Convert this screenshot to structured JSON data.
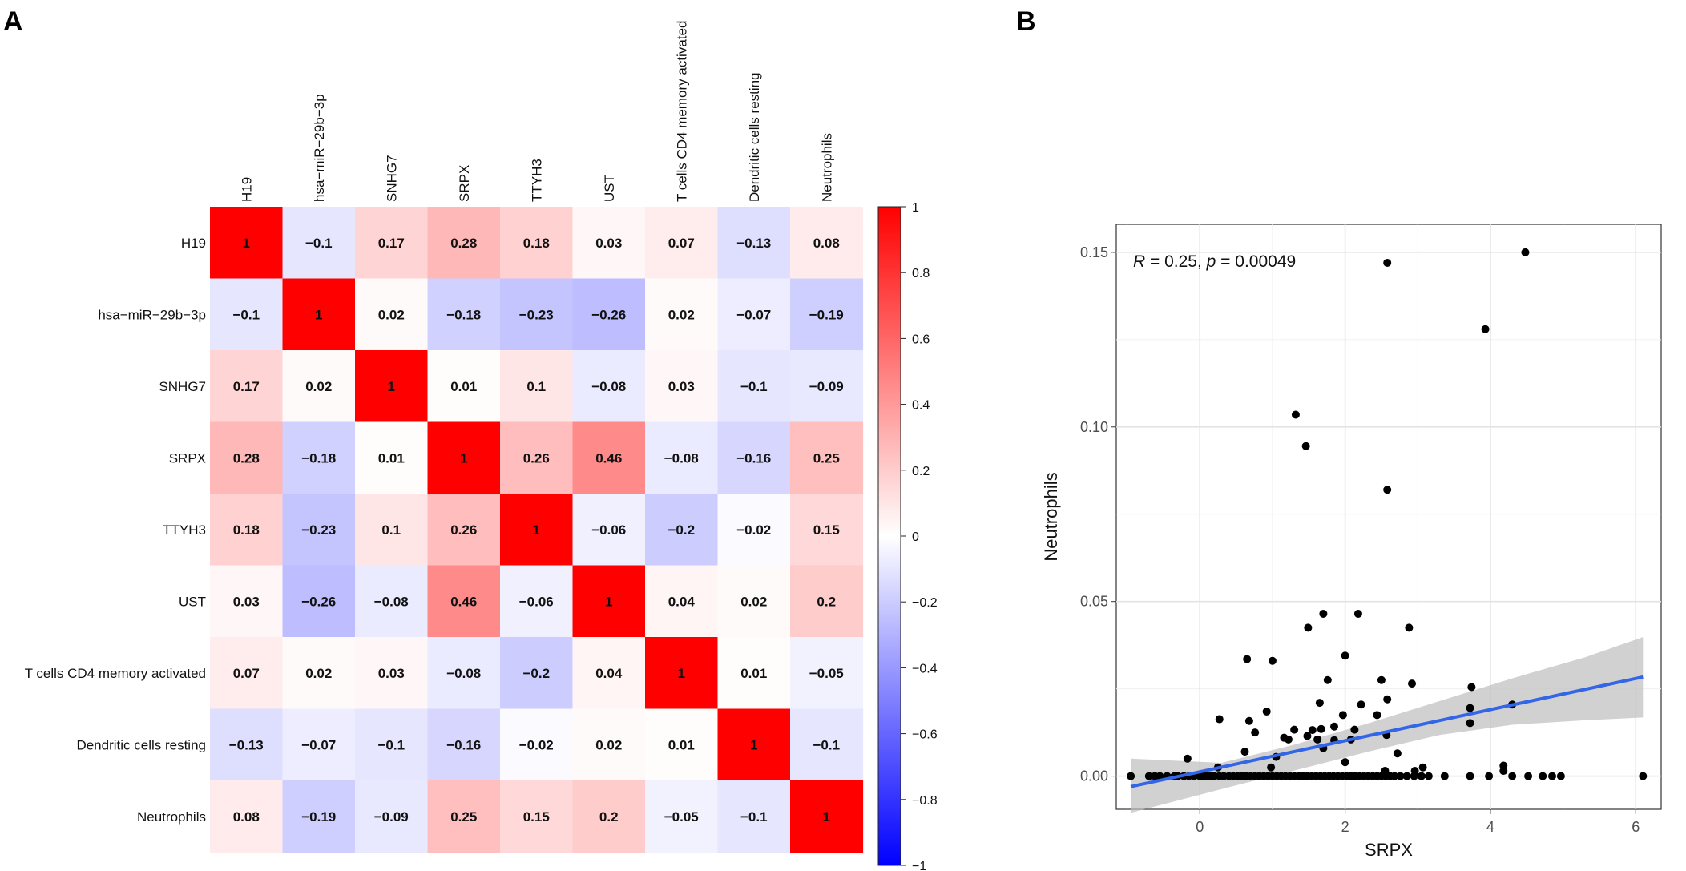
{
  "panels": {
    "a": "A",
    "b": "B"
  },
  "chart_data": [
    {
      "type": "heatmap",
      "title": "",
      "rows": [
        "H19",
        "hsa−miR−29b−3p",
        "SNHG7",
        "SRPX",
        "TTYH3",
        "UST",
        "T cells CD4 memory activated",
        "Dendritic cells resting",
        "Neutrophils"
      ],
      "columns": [
        "H19",
        "hsa−miR−29b−3p",
        "SNHG7",
        "SRPX",
        "TTYH3",
        "UST",
        "T cells CD4 memory activated",
        "Dendritic cells resting",
        "Neutrophils"
      ],
      "values": [
        [
          1,
          -0.1,
          0.17,
          0.28,
          0.18,
          0.03,
          0.07,
          -0.13,
          0.08
        ],
        [
          -0.1,
          1,
          0.02,
          -0.18,
          -0.23,
          -0.26,
          0.02,
          -0.07,
          -0.19
        ],
        [
          0.17,
          0.02,
          1,
          0.01,
          0.1,
          -0.08,
          0.03,
          -0.1,
          -0.09
        ],
        [
          0.28,
          -0.18,
          0.01,
          1,
          0.26,
          0.46,
          -0.08,
          -0.16,
          0.25
        ],
        [
          0.18,
          -0.23,
          0.1,
          0.26,
          1,
          -0.06,
          -0.2,
          -0.02,
          0.15
        ],
        [
          0.03,
          -0.26,
          -0.08,
          0.46,
          -0.06,
          1,
          0.04,
          0.02,
          0.2
        ],
        [
          0.07,
          0.02,
          0.03,
          -0.08,
          -0.2,
          0.04,
          1,
          0.01,
          -0.05
        ],
        [
          -0.13,
          -0.07,
          -0.1,
          -0.16,
          -0.02,
          0.02,
          0.01,
          1,
          -0.1
        ],
        [
          0.08,
          -0.19,
          -0.09,
          0.25,
          0.15,
          0.2,
          -0.05,
          -0.1,
          1
        ]
      ],
      "colorbar": {
        "range": [
          -1,
          1
        ],
        "ticks": [
          1,
          0.8,
          0.6,
          0.4,
          0.2,
          0,
          -0.2,
          -0.4,
          -0.6,
          -0.8,
          -1
        ],
        "tick_labels": [
          "1",
          "0.8",
          "0.6",
          "0.4",
          "0.2",
          "0",
          "−0.2",
          "−0.4",
          "−0.6",
          "−0.8",
          "−1"
        ],
        "colors": {
          "low": "#0000ff",
          "mid": "#ffffff",
          "high": "#ff0000"
        }
      }
    },
    {
      "type": "scatter",
      "title": "",
      "xlabel": "SRPX",
      "ylabel": "Neutrophils",
      "xlim": [
        -1.15,
        6.35
      ],
      "ylim": [
        -0.0095,
        0.158
      ],
      "x_ticks": [
        0,
        2,
        4,
        6
      ],
      "x_tick_labels": [
        "0",
        "2",
        "4",
        "6"
      ],
      "y_ticks": [
        0,
        0.05,
        0.1,
        0.15
      ],
      "y_tick_labels": [
        "0.00",
        "0.05",
        "0.10",
        "0.15"
      ],
      "grid": true,
      "annotation": {
        "r_symbol": "R",
        "r_text": " = 0.25, ",
        "p_symbol": "p",
        "p_text": " = 0.00049"
      },
      "regression": {
        "x": [
          -0.95,
          6.1
        ],
        "y": [
          -0.003,
          0.0284
        ],
        "color": "#3366e6"
      },
      "confidence_band": {
        "x": [
          -0.95,
          0.3,
          1.3,
          2.3,
          3.3,
          4.3,
          5.3,
          6.1
        ],
        "upper": [
          0.005,
          0.0038,
          0.009,
          0.015,
          0.0215,
          0.028,
          0.034,
          0.0398
        ],
        "lower": [
          -0.0105,
          -0.0037,
          0.0016,
          0.0069,
          0.0118,
          0.0147,
          0.016,
          0.0168
        ],
        "color": "#bdbdbd"
      },
      "points": [
        [
          2.58,
          0.147
        ],
        [
          4.48,
          0.15
        ],
        [
          3.93,
          0.128
        ],
        [
          1.32,
          0.1035
        ],
        [
          1.46,
          0.0945
        ],
        [
          2.58,
          0.082
        ],
        [
          1.7,
          0.0465
        ],
        [
          2.18,
          0.0465
        ],
        [
          1.49,
          0.0425
        ],
        [
          2.88,
          0.0425
        ],
        [
          2.0,
          0.0345
        ],
        [
          0.65,
          0.0335
        ],
        [
          1.0,
          0.033
        ],
        [
          1.76,
          0.0275
        ],
        [
          2.5,
          0.0275
        ],
        [
          2.92,
          0.0265
        ],
        [
          3.74,
          0.0255
        ],
        [
          2.58,
          0.022
        ],
        [
          1.65,
          0.021
        ],
        [
          4.3,
          0.0205
        ],
        [
          2.22,
          0.0205
        ],
        [
          3.72,
          0.0195
        ],
        [
          0.92,
          0.0185
        ],
        [
          2.44,
          0.0175
        ],
        [
          1.97,
          0.0175
        ],
        [
          0.27,
          0.0163
        ],
        [
          0.68,
          0.0158
        ],
        [
          3.72,
          0.0152
        ],
        [
          1.85,
          0.0142
        ],
        [
          1.3,
          0.0133
        ],
        [
          1.67,
          0.0135
        ],
        [
          2.13,
          0.0133
        ],
        [
          1.55,
          0.0132
        ],
        [
          0.76,
          0.0125
        ],
        [
          1.16,
          0.011
        ],
        [
          1.22,
          0.0105
        ],
        [
          1.85,
          0.0103
        ],
        [
          1.62,
          0.0105
        ],
        [
          2.08,
          0.0105
        ],
        [
          2.57,
          0.0118
        ],
        [
          1.48,
          0.0115
        ],
        [
          1.7,
          0.008
        ],
        [
          0.62,
          0.007
        ],
        [
          1.05,
          0.0055
        ],
        [
          0.98,
          0.0025
        ],
        [
          2.72,
          0.0065
        ],
        [
          3.07,
          0.0025
        ],
        [
          2.0,
          0.004
        ],
        [
          2.55,
          0.0015
        ],
        [
          2.96,
          0.0015
        ],
        [
          4.18,
          0.003
        ],
        [
          4.18,
          0.0015
        ],
        [
          -0.17,
          0.005
        ],
        [
          0.25,
          0.0025
        ],
        [
          -0.95,
          0.0
        ],
        [
          -0.7,
          0.0
        ],
        [
          -0.62,
          0.0
        ],
        [
          -0.55,
          0.0
        ],
        [
          -0.45,
          0.0
        ],
        [
          -0.35,
          0.0
        ],
        [
          -0.3,
          0.0
        ],
        [
          -0.22,
          0.0
        ],
        [
          -0.15,
          0.0
        ],
        [
          -0.08,
          0.0
        ],
        [
          0.0,
          0.0
        ],
        [
          0.05,
          0.0
        ],
        [
          0.1,
          0.0
        ],
        [
          0.15,
          0.0
        ],
        [
          0.2,
          0.0
        ],
        [
          0.27,
          0.0
        ],
        [
          0.33,
          0.0
        ],
        [
          0.4,
          0.0
        ],
        [
          0.46,
          0.0
        ],
        [
          0.52,
          0.0
        ],
        [
          0.58,
          0.0
        ],
        [
          0.64,
          0.0
        ],
        [
          0.7,
          0.0
        ],
        [
          0.76,
          0.0
        ],
        [
          0.82,
          0.0
        ],
        [
          0.88,
          0.0
        ],
        [
          0.94,
          0.0
        ],
        [
          1.0,
          0.0
        ],
        [
          1.06,
          0.0
        ],
        [
          1.12,
          0.0
        ],
        [
          1.18,
          0.0
        ],
        [
          1.24,
          0.0
        ],
        [
          1.3,
          0.0
        ],
        [
          1.36,
          0.0
        ],
        [
          1.42,
          0.0
        ],
        [
          1.48,
          0.0
        ],
        [
          1.54,
          0.0
        ],
        [
          1.6,
          0.0
        ],
        [
          1.66,
          0.0
        ],
        [
          1.72,
          0.0
        ],
        [
          1.78,
          0.0
        ],
        [
          1.84,
          0.0
        ],
        [
          1.9,
          0.0
        ],
        [
          1.96,
          0.0
        ],
        [
          2.02,
          0.0
        ],
        [
          2.08,
          0.0
        ],
        [
          2.14,
          0.0
        ],
        [
          2.2,
          0.0
        ],
        [
          2.26,
          0.0
        ],
        [
          2.32,
          0.0
        ],
        [
          2.38,
          0.0
        ],
        [
          2.44,
          0.0
        ],
        [
          2.5,
          0.0
        ],
        [
          2.56,
          0.0
        ],
        [
          2.62,
          0.0
        ],
        [
          2.68,
          0.0
        ],
        [
          2.76,
          0.0
        ],
        [
          2.85,
          0.0
        ],
        [
          2.95,
          0.0
        ],
        [
          3.05,
          0.0
        ],
        [
          3.15,
          0.0
        ],
        [
          3.37,
          0.0
        ],
        [
          3.72,
          0.0
        ],
        [
          3.98,
          0.0
        ],
        [
          4.3,
          0.0
        ],
        [
          4.52,
          0.0
        ],
        [
          4.72,
          0.0
        ],
        [
          4.85,
          0.0
        ],
        [
          4.97,
          0.0
        ],
        [
          6.1,
          0.0
        ]
      ]
    }
  ]
}
